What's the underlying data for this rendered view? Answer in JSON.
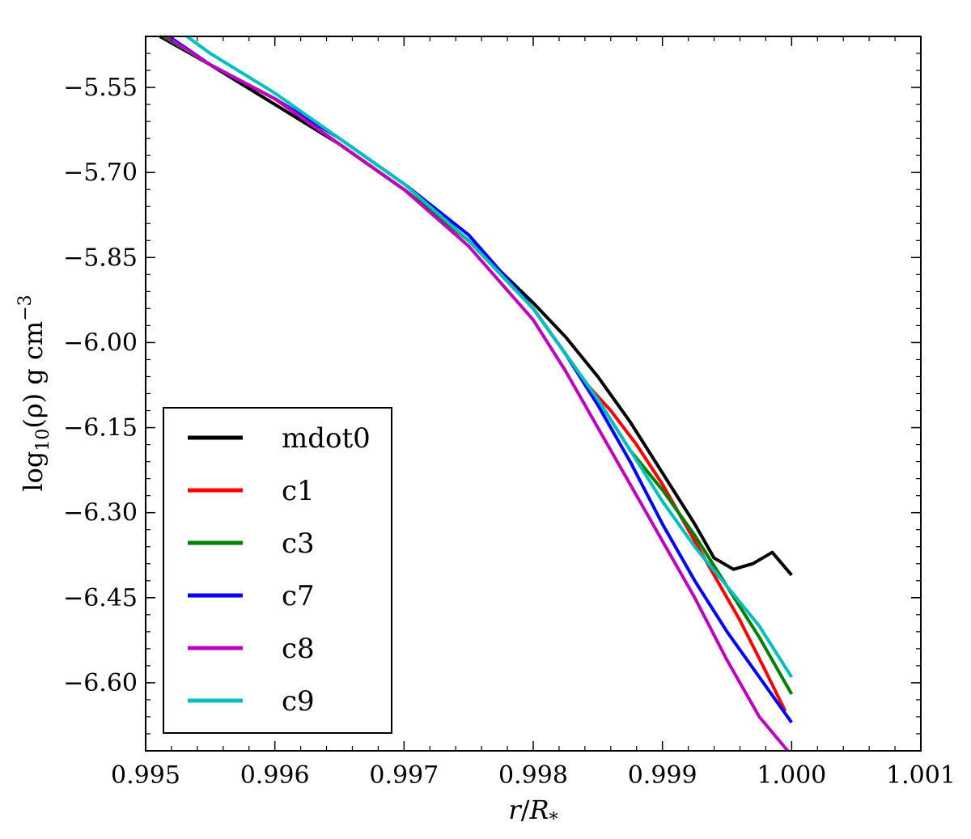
{
  "chart_data": {
    "type": "line",
    "title": "",
    "xlabel": {
      "var": "r",
      "slash": "/",
      "base": "R",
      "sub": "*"
    },
    "ylabel": {
      "pre": "log",
      "sub": "10",
      "mid": "(ρ) g cm",
      "sup": "−3"
    },
    "xlim": [
      0.995,
      1.001
    ],
    "ylim": [
      -6.72,
      -5.46
    ],
    "xticks": [
      0.995,
      0.996,
      0.997,
      0.998,
      0.999,
      1.0,
      1.001
    ],
    "xtick_labels": [
      "0.995",
      "0.996",
      "0.997",
      "0.998",
      "0.999",
      "1.000",
      "1.001"
    ],
    "yticks": [
      -5.55,
      -5.7,
      -5.85,
      -6.0,
      -6.15,
      -6.3,
      -6.45,
      -6.6
    ],
    "ytick_labels": [
      "−5.55",
      "−5.70",
      "−5.85",
      "−6.00",
      "−6.15",
      "−6.30",
      "−6.45",
      "−6.60"
    ],
    "grid": false,
    "legend_position": "lower-left",
    "series": [
      {
        "name": "mdot0",
        "color": "#000000",
        "x": [
          0.99511,
          0.9955,
          0.996,
          0.9965,
          0.997,
          0.9975,
          0.998,
          0.99825,
          0.9985,
          0.99875,
          0.999,
          0.99925,
          0.9994,
          0.99955,
          0.9997,
          0.99985,
          1.0
        ],
        "y": [
          -5.46,
          -5.51,
          -5.58,
          -5.65,
          -5.73,
          -5.82,
          -5.93,
          -5.99,
          -6.06,
          -6.14,
          -6.23,
          -6.32,
          -6.38,
          -6.4,
          -6.39,
          -6.37,
          -6.41
        ]
      },
      {
        "name": "c1",
        "color": "#ff0000",
        "x": [
          0.99514,
          0.9955,
          0.996,
          0.9965,
          0.997,
          0.9975,
          0.998,
          0.99825,
          0.9984,
          0.9986,
          0.9988,
          0.999,
          0.9992,
          0.9994,
          0.9996,
          0.9998,
          0.99995
        ],
        "y": [
          -5.46,
          -5.51,
          -5.57,
          -5.65,
          -5.73,
          -5.82,
          -5.94,
          -6.02,
          -6.07,
          -6.12,
          -6.18,
          -6.25,
          -6.33,
          -6.41,
          -6.49,
          -6.58,
          -6.65
        ]
      },
      {
        "name": "c3",
        "color": "#008000",
        "x": [
          0.99514,
          0.9955,
          0.996,
          0.9965,
          0.997,
          0.9975,
          0.998,
          0.99825,
          0.9985,
          0.99875,
          0.999,
          0.99925,
          0.9995,
          0.99975,
          1.0
        ],
        "y": [
          -5.46,
          -5.51,
          -5.57,
          -5.65,
          -5.73,
          -5.82,
          -5.94,
          -6.02,
          -6.1,
          -6.19,
          -6.26,
          -6.34,
          -6.43,
          -6.52,
          -6.62
        ]
      },
      {
        "name": "c7",
        "color": "#0000ff",
        "x": [
          0.99518,
          0.9955,
          0.996,
          0.9965,
          0.997,
          0.9975,
          0.998,
          0.99825,
          0.9985,
          0.99875,
          0.999,
          0.99925,
          0.9995,
          0.99975,
          1.0
        ],
        "y": [
          -5.46,
          -5.51,
          -5.57,
          -5.64,
          -5.72,
          -5.81,
          -5.94,
          -6.02,
          -6.11,
          -6.21,
          -6.32,
          -6.42,
          -6.51,
          -6.59,
          -6.67
        ]
      },
      {
        "name": "c8",
        "color": "#bf00bf",
        "x": [
          0.99516,
          0.9955,
          0.996,
          0.9965,
          0.997,
          0.9975,
          0.998,
          0.99825,
          0.9985,
          0.99875,
          0.999,
          0.99925,
          0.9995,
          0.99975,
          0.99997
        ],
        "y": [
          -5.46,
          -5.51,
          -5.57,
          -5.65,
          -5.73,
          -5.83,
          -5.96,
          -6.05,
          -6.15,
          -6.25,
          -6.35,
          -6.45,
          -6.56,
          -6.66,
          -6.72
        ]
      },
      {
        "name": "c9",
        "color": "#00bfbf",
        "x": [
          0.99532,
          0.9955,
          0.996,
          0.9965,
          0.997,
          0.9975,
          0.998,
          0.99825,
          0.9985,
          0.99875,
          0.999,
          0.99925,
          0.9995,
          0.99975,
          1.0
        ],
        "y": [
          -5.46,
          -5.49,
          -5.56,
          -5.64,
          -5.72,
          -5.82,
          -5.94,
          -6.02,
          -6.1,
          -6.19,
          -6.28,
          -6.36,
          -6.43,
          -6.5,
          -6.59
        ]
      }
    ]
  }
}
